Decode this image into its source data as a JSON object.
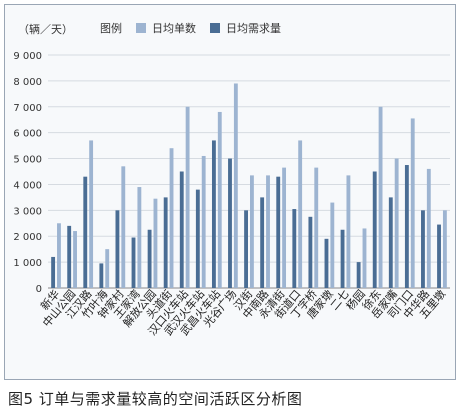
{
  "figure_caption": "图5 订单与需求量较高的空间活跃区分析图",
  "colors": {
    "series1": "#9db4d1",
    "series2": "#4a6d94",
    "grid": "#d6dbe1",
    "axis": "#888888"
  },
  "chart_data": {
    "type": "bar",
    "unit_label": "（辆／天）",
    "legend_title": "图例",
    "categories": [
      "新华",
      "中山公园",
      "江汉路",
      "竹叶海",
      "钟家村",
      "王家湾",
      "解放公园",
      "头道街",
      "汉口火车站",
      "武汉火车站",
      "武昌火车站",
      "光谷广场",
      "汉街",
      "中南路",
      "永清街",
      "街道口",
      "丁字桥",
      "唐家墩",
      "二七",
      "杨园",
      "徐东",
      "岳家嘴",
      "司门口",
      "中华路",
      "五里墩"
    ],
    "series": [
      {
        "name": "日均单数",
        "values": [
          2500,
          2200,
          5700,
          1500,
          4700,
          3900,
          3450,
          5400,
          7000,
          5100,
          6800,
          7900,
          4350,
          4350,
          4650,
          5700,
          4650,
          3300,
          4350,
          2300,
          7000,
          5000,
          6550,
          4600,
          3000
        ]
      },
      {
        "name": "日均需求量",
        "values": [
          1200,
          2400,
          4300,
          950,
          3000,
          1950,
          2250,
          3500,
          4500,
          3800,
          5700,
          5000,
          3000,
          3500,
          4300,
          3050,
          2750,
          1900,
          2250,
          1000,
          4500,
          3500,
          4750,
          3000,
          2450
        ]
      }
    ],
    "yticks": [
      "0",
      "1 000",
      "2 000",
      "3 000",
      "4 000",
      "5 000",
      "6 000",
      "7 000",
      "8 000",
      "9 000"
    ],
    "ylim": [
      0,
      9000
    ],
    "grid": true,
    "legend_position": "top"
  }
}
